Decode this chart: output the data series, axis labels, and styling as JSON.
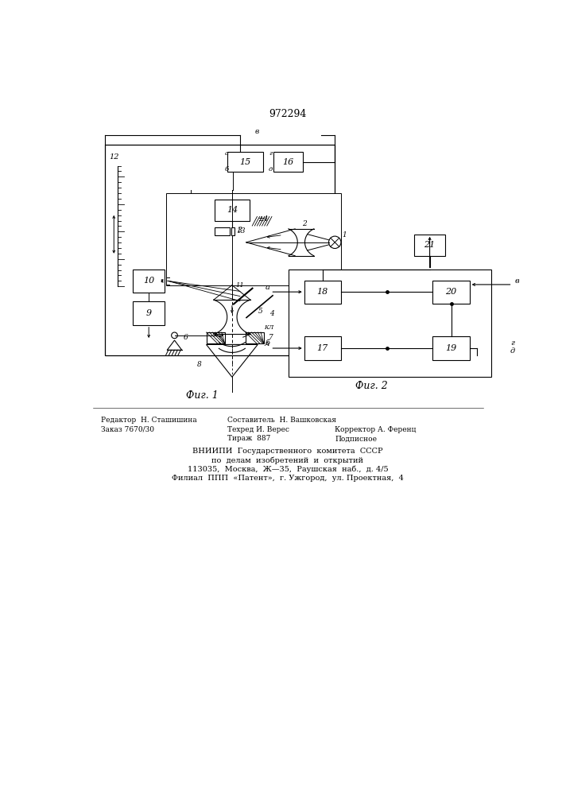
{
  "title": "972294",
  "fig1_caption": "Фиг. 1",
  "fig2_caption": "Фиг. 2",
  "background_color": "#ffffff",
  "line_color": "#000000"
}
